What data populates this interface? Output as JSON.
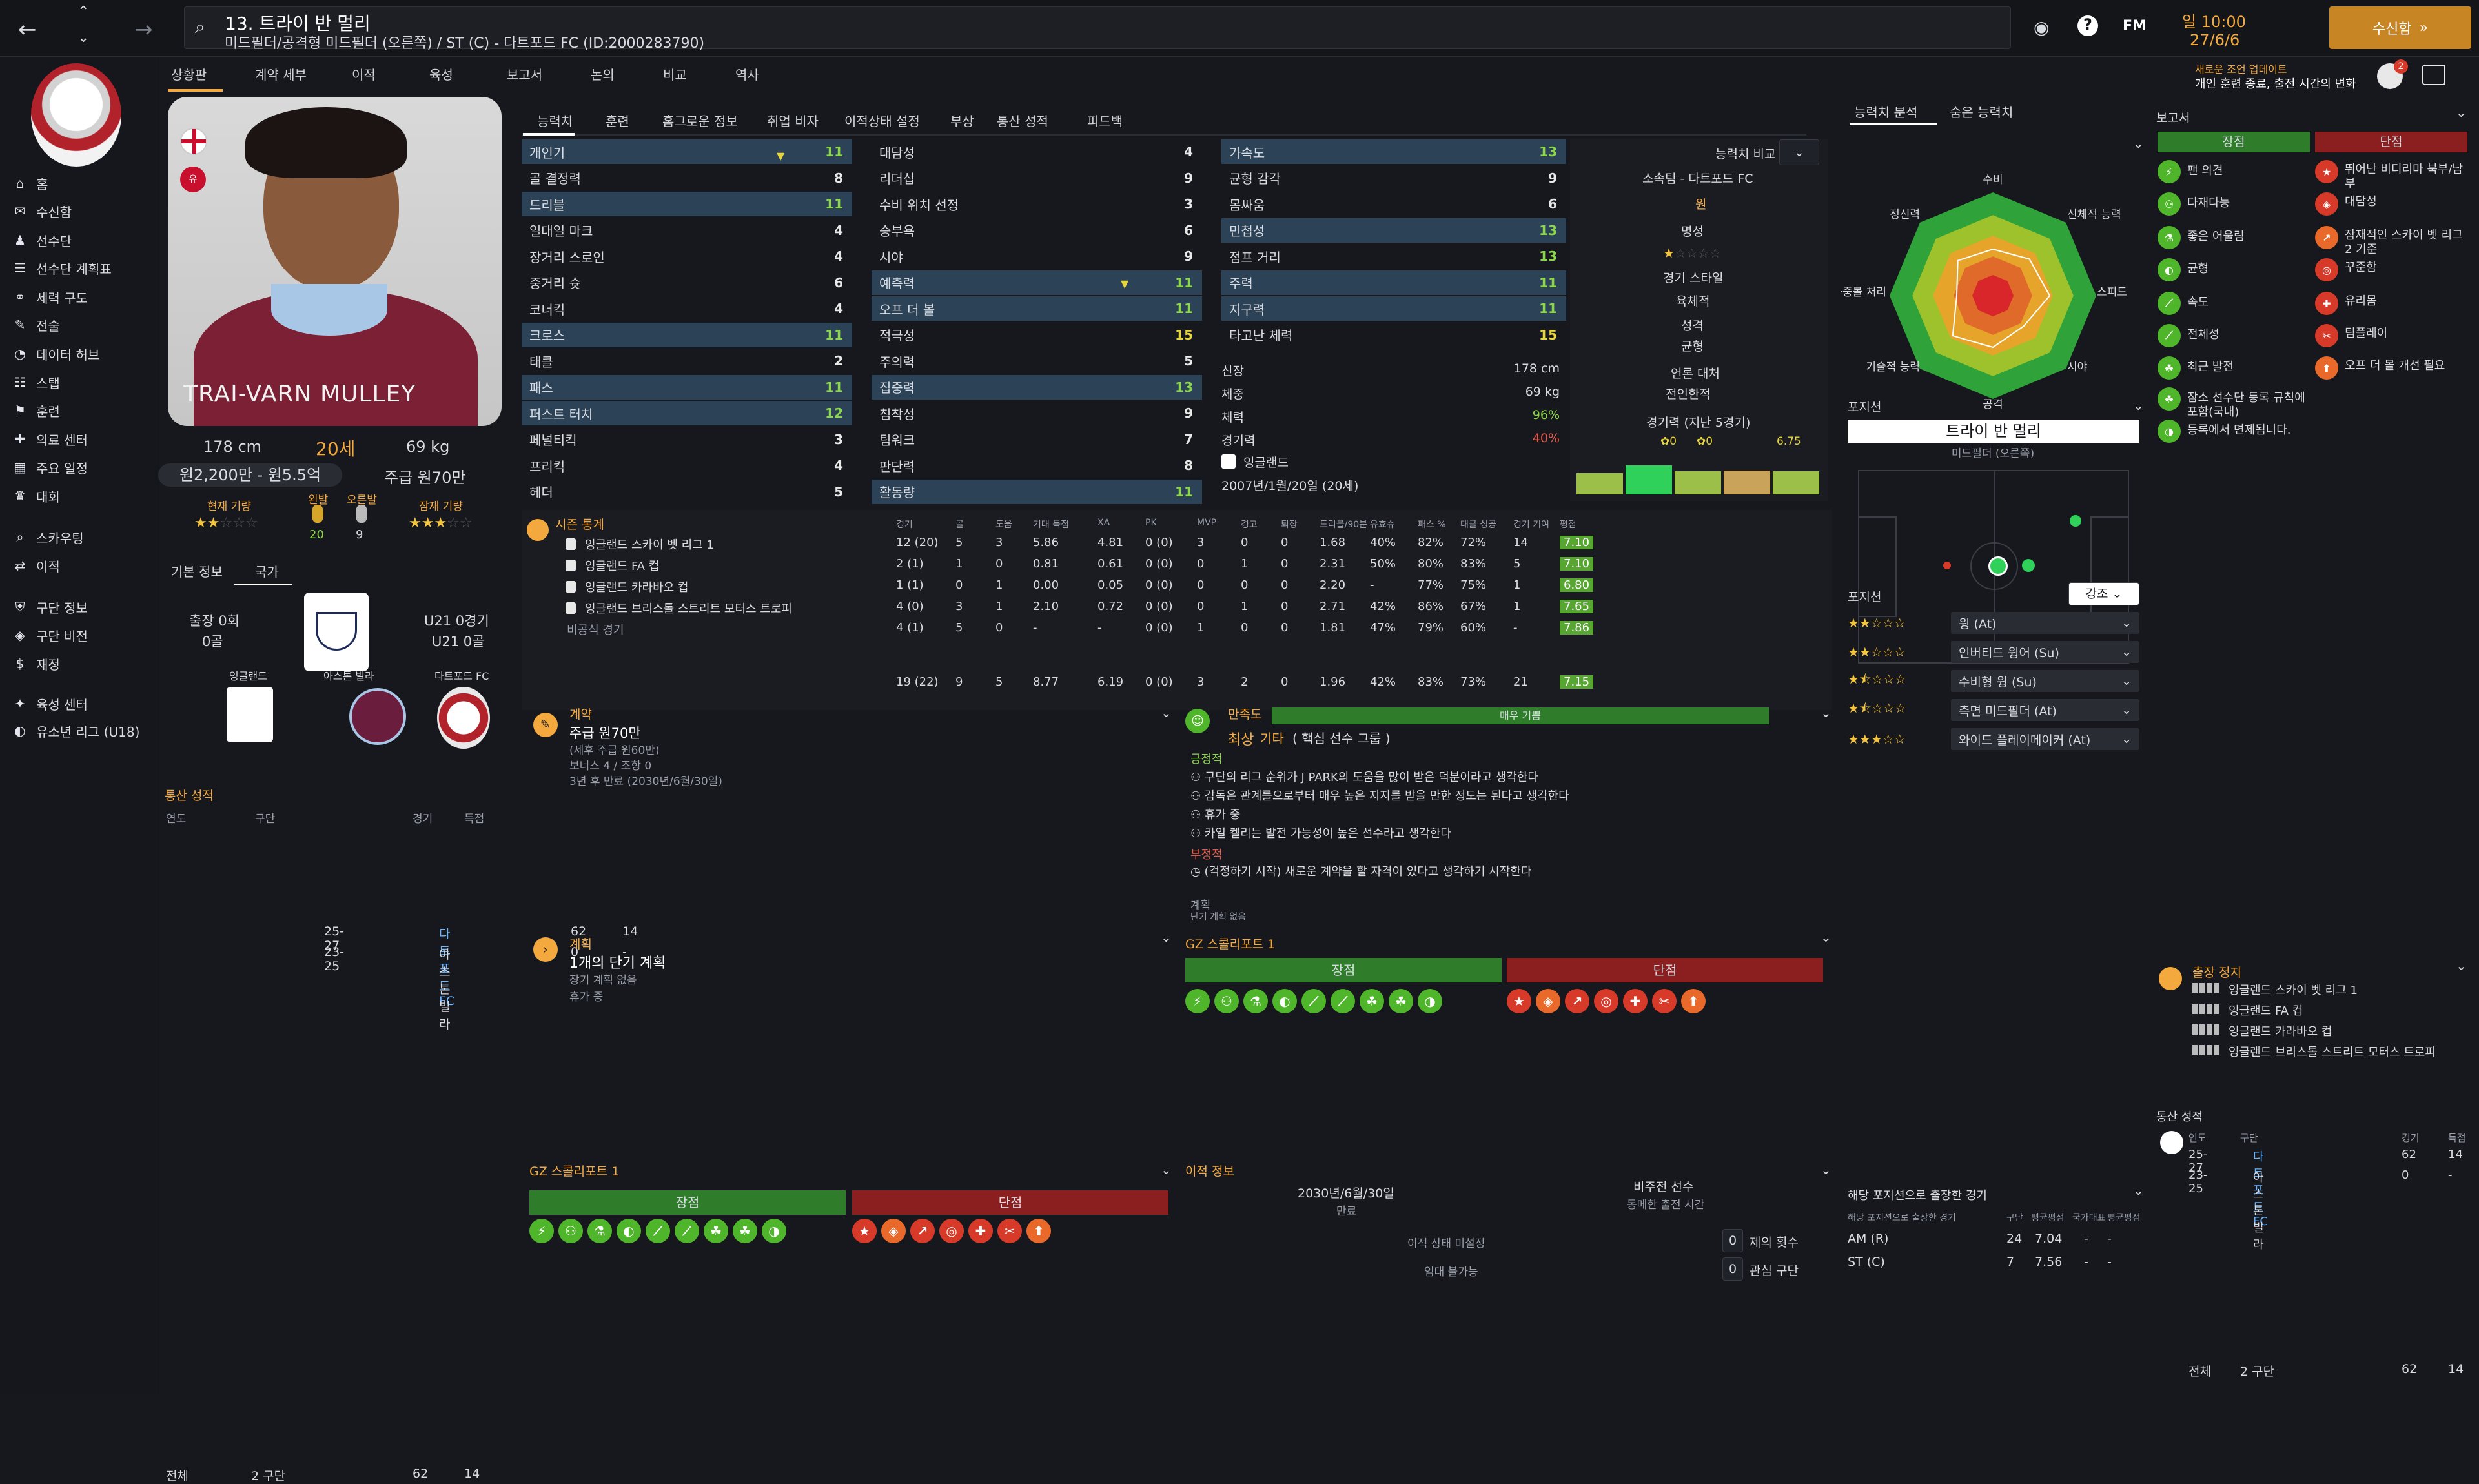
{
  "topbar": {
    "player_name": "13. 트라이 반 멀리",
    "subtitle": "미드필더/공격형 미드필더 (오른쪽) / ST (C) - 다트포드 FC (ID:2000283790)",
    "time": "일 10:00",
    "date": "27/6/6",
    "continue": "수신함",
    "notice_line1": "새로운 조언 업데이트",
    "notice_line2": "개인 훈련 종료, 출전 시간의 변화",
    "fm": "FM",
    "badge": "2"
  },
  "nav_tabs": [
    "상황판",
    "계약 세부",
    "이적",
    "육성",
    "보고서",
    "논의",
    "비교",
    "역사"
  ],
  "sidebar": [
    {
      "icon": "home-icon",
      "label": "홈"
    },
    {
      "icon": "inbox-icon",
      "label": "수신함"
    },
    {
      "icon": "squad-icon",
      "label": "선수단"
    },
    {
      "icon": "planner-icon",
      "label": "선수단 계획표"
    },
    {
      "icon": "dynamics-icon",
      "label": "세력 구도"
    },
    {
      "icon": "tactics-icon",
      "label": "전술"
    },
    {
      "icon": "data-hub-icon",
      "label": "데이터 허브"
    },
    {
      "icon": "staff-icon",
      "label": "스탭"
    },
    {
      "icon": "training-icon",
      "label": "훈련"
    },
    {
      "icon": "medical-icon",
      "label": "의료 센터"
    },
    {
      "icon": "schedule-icon",
      "label": "주요 일정"
    },
    {
      "icon": "competitions-icon",
      "label": "대회"
    },
    {
      "icon": "scouting-icon",
      "label": "스카우팅"
    },
    {
      "icon": "transfers-icon",
      "label": "이적"
    },
    {
      "icon": "club-info-icon",
      "label": "구단 정보"
    },
    {
      "icon": "club-vision-icon",
      "label": "구단 비전"
    },
    {
      "icon": "finances-icon",
      "label": "재정"
    },
    {
      "icon": "dev-centre-icon",
      "label": "육성 센터"
    },
    {
      "icon": "youth-league-icon",
      "label": "유소년 리그 (U18)"
    }
  ],
  "profile": {
    "name_overlay": "TRAI-VARN MULLEY",
    "height": "178 cm",
    "age": "20세",
    "weight": "69 kg",
    "value": "원2,200만 - 원5.5억",
    "wage": "주급 원70만",
    "current_ability_label": "현재 기량",
    "potential_label": "잠재 기량",
    "left_foot_label": "왼발",
    "right_foot_label": "오른발",
    "left_foot_val": "20",
    "right_foot_val": "9",
    "current_stars": 2,
    "potential_stars": 3
  },
  "info_tabs": [
    "기본 정보",
    "국가"
  ],
  "national": {
    "caps": "출장 0회",
    "goals": "0골",
    "u21_caps": "U21 0경기",
    "u21_goals": "U21 0골",
    "team1": "잉글랜드",
    "team2": "아스톤 빌라",
    "team3": "다트포드 FC"
  },
  "career_mini": {
    "title": "통산 성적",
    "col_year": "연도",
    "col_club": "구단",
    "col_apps": "경기",
    "col_goals": "득점",
    "rows": [
      {
        "year": "25-27",
        "club": "다트포드 FC",
        "apps": "62",
        "goals": "14"
      },
      {
        "year": "23-25",
        "club": "아스톤 빌라",
        "apps": "0",
        "goals": "-"
      }
    ],
    "total_label": "전체",
    "total_clubs": "2 구단",
    "total_apps": "62",
    "total_goals": "14"
  },
  "main_tabs": [
    "능력치",
    "훈련",
    "홈그로운 정보",
    "취업 비자",
    "이적상태 설정",
    "부상",
    "통산 성적",
    "피드백"
  ],
  "attrs_tech": [
    {
      "n": "개인기",
      "v": "11",
      "c": "g",
      "hl": true
    },
    {
      "n": "골 결정력",
      "v": "8",
      "c": "w",
      "hl": false
    },
    {
      "n": "드리블",
      "v": "11",
      "c": "g",
      "hl": true
    },
    {
      "n": "일대일 마크",
      "v": "4",
      "c": "w",
      "hl": false
    },
    {
      "n": "장거리 스로인",
      "v": "4",
      "c": "w",
      "hl": false
    },
    {
      "n": "중거리 슛",
      "v": "6",
      "c": "w",
      "hl": false
    },
    {
      "n": "코너킥",
      "v": "4",
      "c": "w",
      "hl": false
    },
    {
      "n": "크로스",
      "v": "11",
      "c": "g",
      "hl": true
    },
    {
      "n": "태클",
      "v": "2",
      "c": "w",
      "hl": false
    },
    {
      "n": "패스",
      "v": "11",
      "c": "g",
      "hl": true
    },
    {
      "n": "퍼스트 터치",
      "v": "12",
      "c": "g",
      "hl": true
    },
    {
      "n": "페널티킥",
      "v": "3",
      "c": "w",
      "hl": false
    },
    {
      "n": "프리킥",
      "v": "4",
      "c": "w",
      "hl": false
    },
    {
      "n": "헤더",
      "v": "5",
      "c": "w",
      "hl": false
    }
  ],
  "attrs_mental": [
    {
      "n": "대담성",
      "v": "4",
      "c": "w",
      "hl": false
    },
    {
      "n": "리더십",
      "v": "9",
      "c": "w",
      "hl": false
    },
    {
      "n": "수비 위치 선정",
      "v": "3",
      "c": "w",
      "hl": false
    },
    {
      "n": "승부욕",
      "v": "6",
      "c": "w",
      "hl": false
    },
    {
      "n": "시야",
      "v": "9",
      "c": "w",
      "hl": false
    },
    {
      "n": "예측력",
      "v": "11",
      "c": "g",
      "hl": true
    },
    {
      "n": "오프 더 볼",
      "v": "11",
      "c": "g",
      "hl": true
    },
    {
      "n": "적극성",
      "v": "15",
      "c": "y",
      "hl": false
    },
    {
      "n": "주의력",
      "v": "5",
      "c": "w",
      "hl": false
    },
    {
      "n": "집중력",
      "v": "13",
      "c": "g",
      "hl": true
    },
    {
      "n": "침착성",
      "v": "9",
      "c": "w",
      "hl": false
    },
    {
      "n": "팀워크",
      "v": "7",
      "c": "w",
      "hl": false
    },
    {
      "n": "판단력",
      "v": "8",
      "c": "w",
      "hl": false
    },
    {
      "n": "활동량",
      "v": "11",
      "c": "g",
      "hl": true
    }
  ],
  "attrs_phys": [
    {
      "n": "가속도",
      "v": "13",
      "c": "g",
      "hl": true
    },
    {
      "n": "균형 감각",
      "v": "9",
      "c": "w",
      "hl": false
    },
    {
      "n": "몸싸움",
      "v": "6",
      "c": "w",
      "hl": false
    },
    {
      "n": "민첩성",
      "v": "13",
      "c": "g",
      "hl": true
    },
    {
      "n": "점프 거리",
      "v": "13",
      "c": "g",
      "hl": false
    },
    {
      "n": "주력",
      "v": "11",
      "c": "g",
      "hl": true
    },
    {
      "n": "지구력",
      "v": "11",
      "c": "g",
      "hl": true
    },
    {
      "n": "타고난 체력",
      "v": "15",
      "c": "y",
      "hl": false
    }
  ],
  "phys_info": {
    "height_l": "신장",
    "height": "178 cm",
    "weight_l": "체중",
    "weight": "69 kg",
    "cond_l": "체력",
    "cond": "96%",
    "sharp_l": "경기력",
    "sharp": "40%",
    "nation": "잉글랜드",
    "dob": "2007년/1월/20일 (20세)"
  },
  "compare": {
    "title": "능력치 비교",
    "club": "소속팀 - 다트포드 FC",
    "wage_l": "원",
    "rep_l": "명성",
    "style_l": "경기 스타일",
    "style": "육체적",
    "person_l": "성격",
    "person": "균형",
    "media_l": "언론 대처",
    "media": "전인한적",
    "form_l": "경기력 (지난 5경기)",
    "form_goals": "0",
    "form_assists": "0",
    "form_rating": "6.75",
    "form_bars": [
      0.55,
      0.75,
      0.6,
      0.62,
      0.6
    ]
  },
  "season": {
    "title": "시즌 통계",
    "cols": [
      "경기",
      "골",
      "도움",
      "기대 득점",
      "XA",
      "PK",
      "MVP",
      "경고",
      "퇴장",
      "드리블/90분",
      "유효슈",
      "패스 %",
      "태클 성공",
      "경기 기여",
      "평점"
    ],
    "rows": [
      {
        "comp": "잉글랜드 스카이 벳 리그 1",
        "v": [
          "12 (20)",
          "5",
          "3",
          "5.86",
          "4.81",
          "0 (0)",
          "3",
          "0",
          "0",
          "1.68",
          "40%",
          "82%",
          "72%",
          "14",
          "7.10"
        ]
      },
      {
        "comp": "잉글랜드 FA 컵",
        "v": [
          "2 (1)",
          "1",
          "0",
          "0.81",
          "0.61",
          "0 (0)",
          "0",
          "1",
          "0",
          "2.31",
          "50%",
          "80%",
          "83%",
          "5",
          "7.10"
        ]
      },
      {
        "comp": "잉글랜드 카라바오 컵",
        "v": [
          "1 (1)",
          "0",
          "1",
          "0.00",
          "0.05",
          "0 (0)",
          "0",
          "0",
          "0",
          "2.20",
          "-",
          "77%",
          "75%",
          "1",
          "6.80"
        ]
      },
      {
        "comp": "잉글랜드 브리스톨 스트리트 모터스 트로피",
        "v": [
          "4 (0)",
          "3",
          "1",
          "2.10",
          "0.72",
          "0 (0)",
          "0",
          "1",
          "0",
          "2.71",
          "42%",
          "86%",
          "67%",
          "1",
          "7.65"
        ]
      },
      {
        "comp": "비공식 경기",
        "v": [
          "4 (1)",
          "5",
          "0",
          "-",
          "-",
          "0 (0)",
          "1",
          "0",
          "0",
          "1.81",
          "47%",
          "79%",
          "60%",
          "-",
          "7.86"
        ]
      }
    ],
    "total": [
      "19 (22)",
      "9",
      "5",
      "8.77",
      "6.19",
      "0 (0)",
      "3",
      "2",
      "0",
      "1.96",
      "42%",
      "83%",
      "73%",
      "21",
      "7.15"
    ]
  },
  "contract": {
    "title": "계약",
    "wage": "주급 원70만",
    "wage_note": "(세후 주급 원60만)",
    "bonus": "보너스 4 / 조항 0",
    "expiry": "3년 후 만료 (2030년/6월/30일)"
  },
  "happiness": {
    "title": "만족도",
    "bar_label": "매우 기쁨",
    "level": "최상",
    "level2": "기타",
    "level3": "( 핵심 선수 그룹 )",
    "pos_l": "긍정적",
    "positives": [
      "구단의 리그 순위가 J PARK의 도움을 많이 받은 덕분이라고 생각한다",
      "감독은 관계를으로부터 매우 높은 지지를 받을 만한 정도는 된다고 생각한다",
      "휴가 중",
      "카일 켈리는 발전 가능성이 높은 선수라고 생각한다"
    ],
    "neg_l": "부정적",
    "negatives": [
      "(걱정하기 시작) 새로운 계약을 할 자격이 있다고 생각하기 시작한다"
    ],
    "plan_l": "계획",
    "plan": "단기 계획 없음"
  },
  "plans": {
    "title": "계획",
    "main": "1개의 단기 계획",
    "sub1": "장기 계획 없음",
    "sub2": "휴가 중"
  },
  "scout1": {
    "title": "GZ 스콜리포트 1",
    "pros": "장점",
    "cons": "단점"
  },
  "scout2": {
    "title": "GZ 스콜리포트 1",
    "pros": "장점",
    "cons": "단점"
  },
  "transfer": {
    "title": "이적 정보",
    "date": "2030년/6월/30일",
    "date_l": "만료",
    "status": "비주전 선수",
    "status_l": "동메한 출전 시간",
    "trans_l": "이적 상태 미설정",
    "loan_l": "임대 불가능",
    "offers": "0",
    "offers_l": "제의 횟수",
    "interest": "0",
    "interest_l": "관심 구단"
  },
  "analysis": {
    "tab1": "능력치 분석",
    "tab2": "숨은 능력치",
    "radar_labels": [
      "수비",
      "신체적 능력",
      "스피드",
      "시야",
      "공격",
      "기술적 능력",
      "공중볼 처리",
      "정신력"
    ]
  },
  "position": {
    "title": "포지션",
    "name": "트라이 반 멀리",
    "role": "미드필더 (오른쪽)",
    "roles_title": "포지션",
    "filter": "강조",
    "roles": [
      {
        "stars": 2,
        "name": "윙 (At)"
      },
      {
        "stars": 2,
        "name": "인버티드 윙어 (Su)"
      },
      {
        "stars": 1.5,
        "name": "수비형 윙 (Su)"
      },
      {
        "stars": 1.5,
        "name": "측면 미드필더 (At)"
      },
      {
        "stars": 3,
        "name": "와이드 플레이메이커 (At)"
      }
    ]
  },
  "pos_apps": {
    "title": "해당 포지션으로 출장한 경기",
    "col": "해당 포지션으로 출장한 경기",
    "cols": [
      "구단",
      "평균평점",
      "국가대표",
      "평균평점"
    ],
    "rows": [
      {
        "pos": "AM (R)",
        "apps": "24",
        "avg": "7.04",
        "n": "-",
        "na": "-"
      },
      {
        "pos": "ST (C)",
        "apps": "7",
        "avg": "7.56",
        "n": "-",
        "na": "-"
      }
    ]
  },
  "report": {
    "title": "보고서",
    "pros_l": "장점",
    "cons_l": "단점",
    "pros": [
      {
        "ic": "flair-icon",
        "t": "팬 의견"
      },
      {
        "ic": "dribble-icon",
        "t": "다재다능"
      },
      {
        "ic": "flask-icon",
        "t": "좋은 어울림"
      },
      {
        "ic": "balance-icon",
        "t": "균형"
      },
      {
        "ic": "pace-icon",
        "t": "속도"
      },
      {
        "ic": "stamina-icon",
        "t": "전체성"
      },
      {
        "ic": "growth-icon",
        "t": "최근 발전"
      },
      {
        "ic": "youth-icon",
        "t": "잠소 선수단 등록 규칙에 포함(국내)"
      },
      {
        "ic": "register-icon",
        "t": "등록에서 면제됩니다."
      }
    ],
    "cons": [
      {
        "ic": "star-icon",
        "t": "뛰어난 비디리마 북부/남부"
      },
      {
        "ic": "shield-icon",
        "t": "대담성"
      },
      {
        "ic": "trend-icon",
        "t": "잠재적인 스카이 벳 리그 2 기준"
      },
      {
        "ic": "target-icon",
        "t": "꾸준함"
      },
      {
        "ic": "plus-icon",
        "t": "유리몸"
      },
      {
        "ic": "team-icon",
        "t": "팀플레이"
      },
      {
        "ic": "run-icon",
        "t": "오프 더 볼 개선 필요"
      }
    ]
  },
  "suspension": {
    "title": "출장 정지",
    "rows": [
      "잉글랜드 스카이 벳 리그 1",
      "잉글랜드 FA 컵",
      "잉글랜드 카라바오 컵",
      "잉글랜드 브리스톨 스트리트 모터스 트로피"
    ]
  },
  "career_right": {
    "title": "통산 성적",
    "col_year": "연도",
    "col_club": "구단",
    "col_apps": "경기",
    "col_goals": "득점",
    "rows": [
      {
        "year": "25-27",
        "club": "다트포드 FC",
        "apps": "62",
        "goals": "14"
      },
      {
        "year": "23-25",
        "club": "아스톤 빌라",
        "apps": "0",
        "goals": "-"
      }
    ],
    "total_label": "전체",
    "total_clubs": "2 구단",
    "total_apps": "62",
    "total_goals": "14"
  },
  "colors": {
    "accent": "#f3a93d",
    "green": "#8bd64a",
    "yellow": "#e6d53c",
    "pro_green": "#2f7d2a",
    "con_red": "#8b1e1e"
  }
}
